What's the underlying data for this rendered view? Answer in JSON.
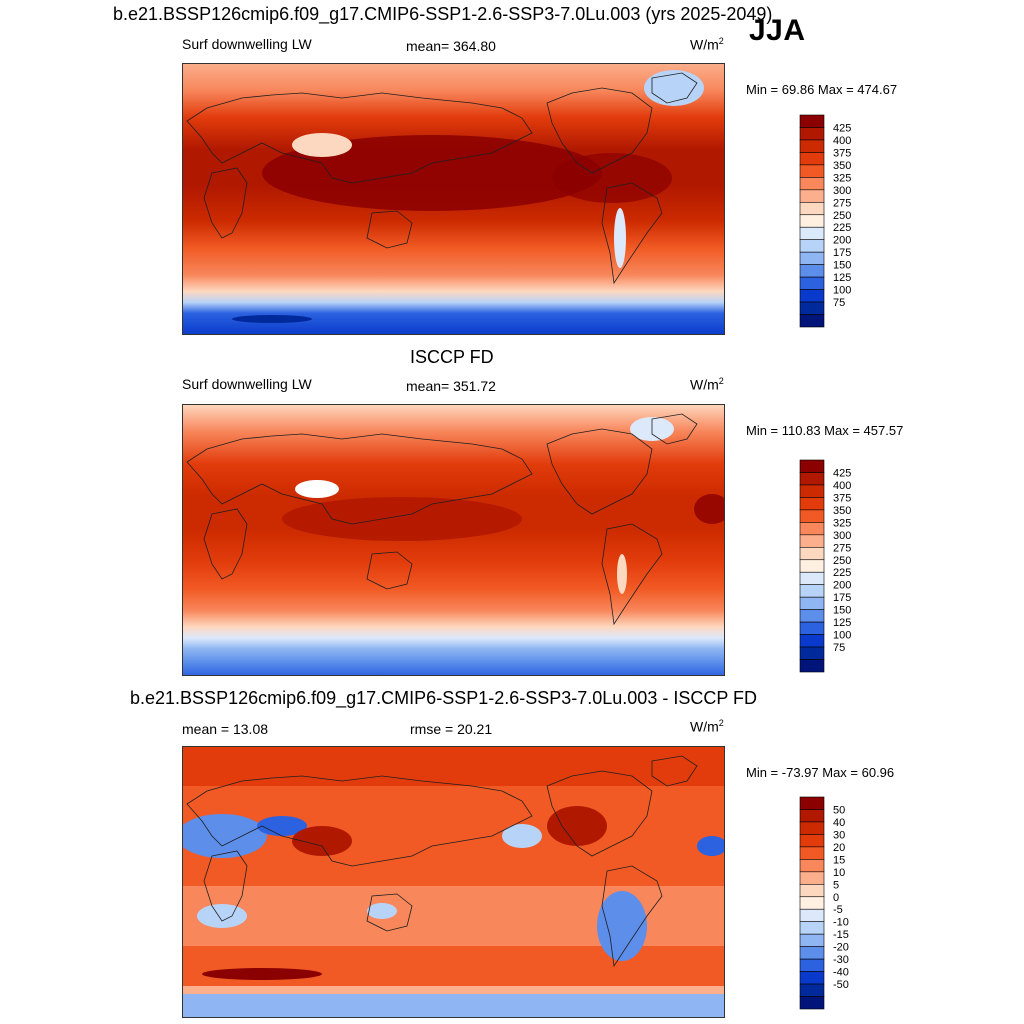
{
  "season": "JJA",
  "panels": [
    {
      "title": "b.e21.BSSP126cmip6.f09_g17.CMIP6-SSP1-2.6-SSP3-7.0Lu.003 (yrs 2025-2049)",
      "left_label": "Surf downwelling LW",
      "center_label": "mean= 364.80",
      "unit_base": "W/m",
      "unit_exp": "2",
      "minmax": "Min =  69.86 Max = 474.67"
    },
    {
      "title": "ISCCP FD",
      "left_label": "Surf downwelling LW",
      "center_label": "mean= 351.72",
      "unit_base": "W/m",
      "unit_exp": "2",
      "minmax": "Min = 110.83 Max = 457.57"
    },
    {
      "title": "b.e21.BSSP126cmip6.f09_g17.CMIP6-SSP1-2.6-SSP3-7.0Lu.003 - ISCCP FD",
      "left_label": "mean =  13.08",
      "center_label": "rmse =  20.21",
      "unit_base": "W/m",
      "unit_exp": "2",
      "minmax": "Min = -73.97 Max =  60.96"
    }
  ],
  "colorbars": {
    "absolute": {
      "levels": [
        "425",
        "400",
        "375",
        "350",
        "325",
        "300",
        "275",
        "250",
        "225",
        "200",
        "175",
        "150",
        "125",
        "100",
        "75"
      ],
      "colors": [
        "#8b0000",
        "#b01800",
        "#cc2a00",
        "#e23c0c",
        "#f15a24",
        "#f8875c",
        "#fbaf8c",
        "#fdd8c0",
        "#fff0e2",
        "#dce9fb",
        "#b8d3f8",
        "#8fb6f3",
        "#5c8eea",
        "#2c62e0",
        "#0a3acc",
        "#002a9c",
        "#00147a"
      ]
    },
    "difference": {
      "levels": [
        "50",
        "40",
        "30",
        "20",
        "15",
        "10",
        "5",
        "0",
        "-5",
        "-10",
        "-15",
        "-20",
        "-30",
        "-40",
        "-50"
      ],
      "colors": [
        "#8b0000",
        "#b01800",
        "#cc2a00",
        "#e23c0c",
        "#f15a24",
        "#f8875c",
        "#fbaf8c",
        "#fdd8c0",
        "#fff0e2",
        "#dce9fb",
        "#b8d3f8",
        "#8fb6f3",
        "#5c8eea",
        "#2c62e0",
        "#0a3acc",
        "#002a9c",
        "#00147a"
      ]
    }
  }
}
